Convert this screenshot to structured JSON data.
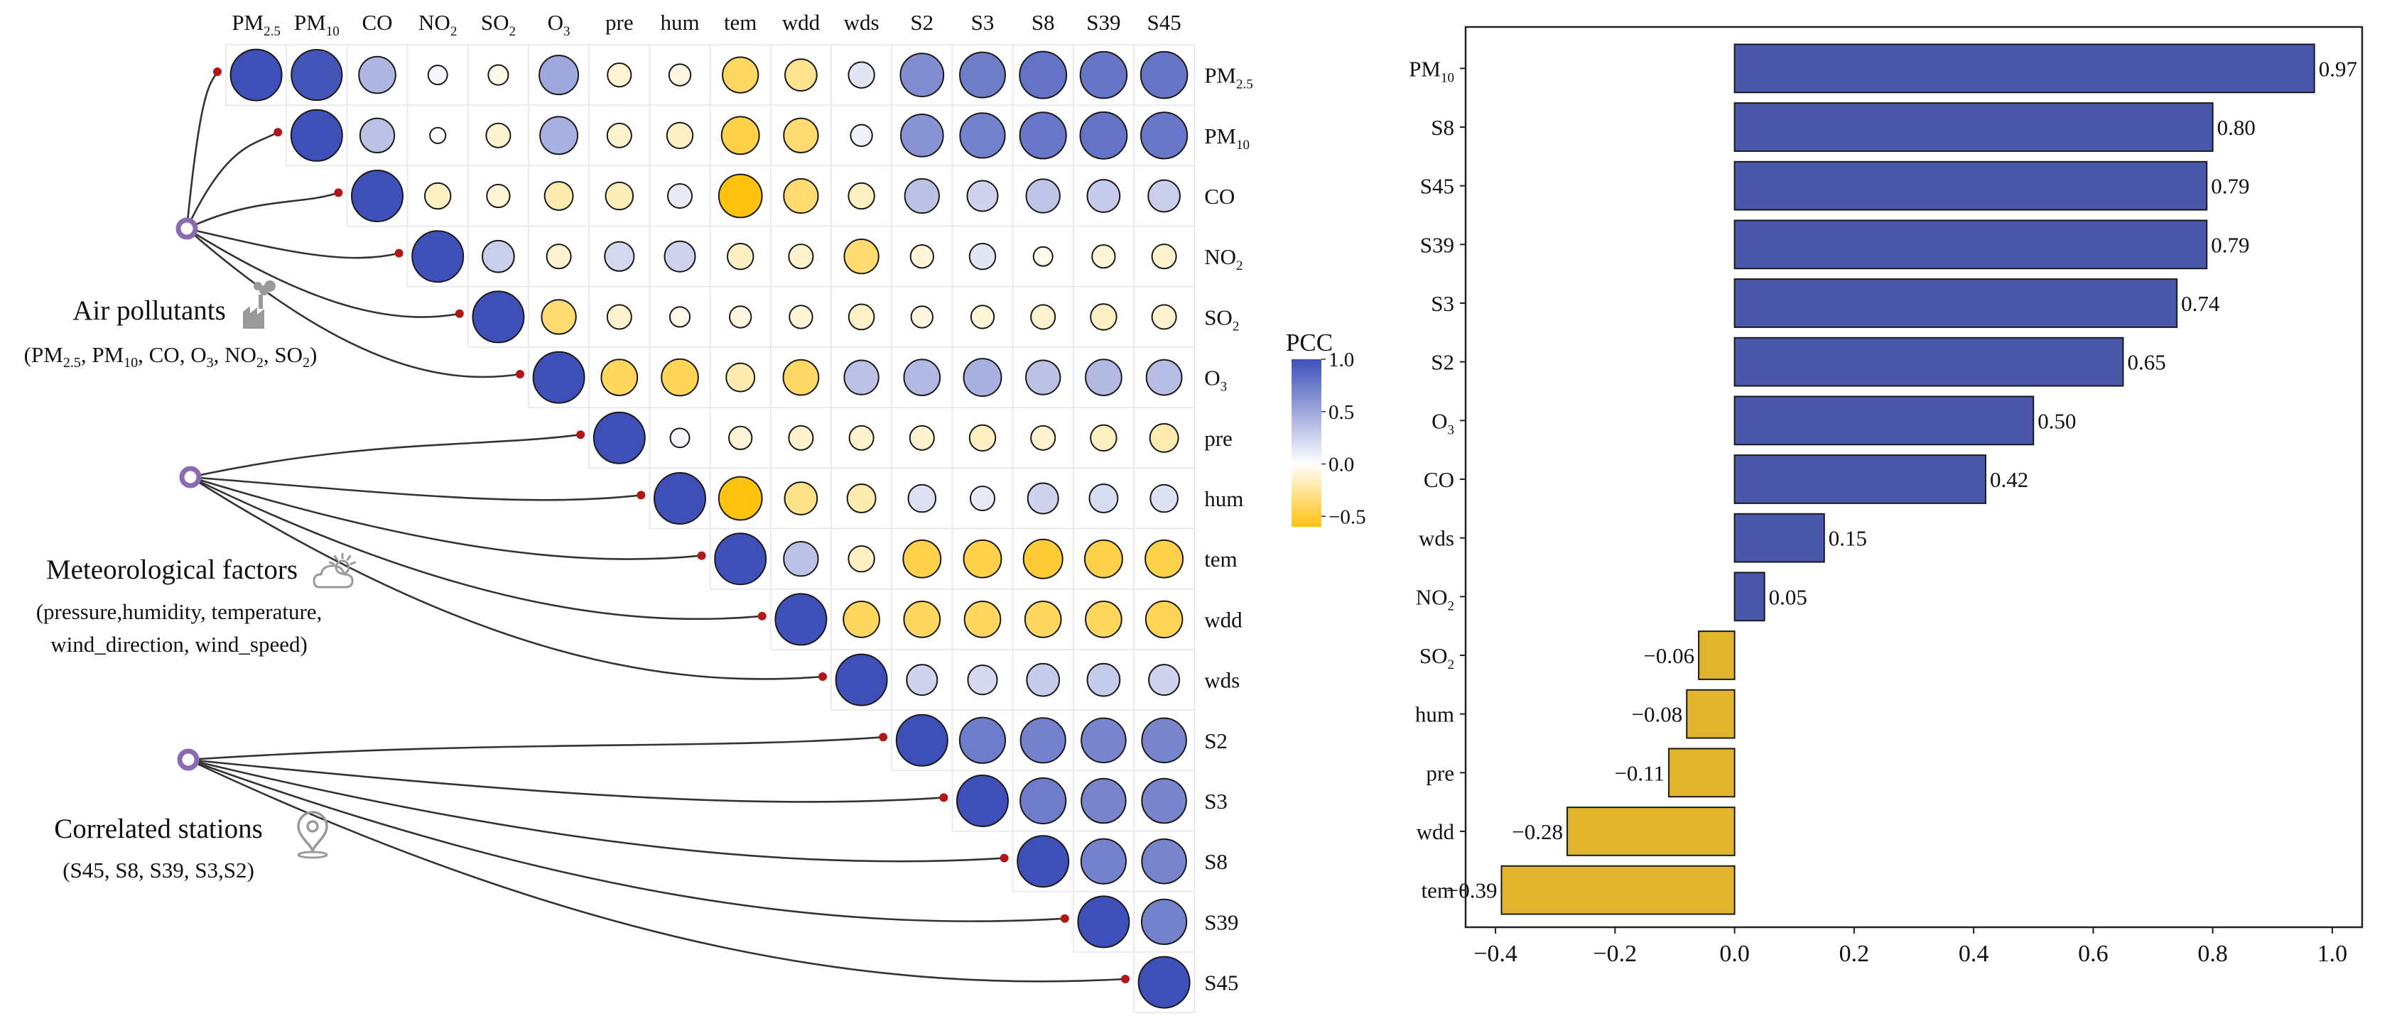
{
  "chart_data": [
    {
      "type": "heatmap",
      "subtype": "upper-triangular correlation circles",
      "columns": [
        "PM2.5",
        "PM10",
        "CO",
        "NO2",
        "SO2",
        "O3",
        "pre",
        "hum",
        "tem",
        "wdd",
        "wds",
        "S2",
        "S3",
        "S8",
        "S39",
        "S45"
      ],
      "rows": [
        "PM2.5",
        "PM10",
        "CO",
        "NO2",
        "SO2",
        "O3",
        "pre",
        "hum",
        "tem",
        "wdd",
        "wds",
        "S2",
        "S3",
        "S8",
        "S39",
        "S45"
      ],
      "column_labels": [
        {
          "base": "PM",
          "sub": "2.5"
        },
        {
          "base": "PM",
          "sub": "10"
        },
        {
          "base": "CO",
          "sub": ""
        },
        {
          "base": "NO",
          "sub": "2"
        },
        {
          "base": "SO",
          "sub": "2"
        },
        {
          "base": "O",
          "sub": "3"
        },
        {
          "base": "pre",
          "sub": ""
        },
        {
          "base": "hum",
          "sub": ""
        },
        {
          "base": "tem",
          "sub": ""
        },
        {
          "base": "wdd",
          "sub": ""
        },
        {
          "base": "wds",
          "sub": ""
        },
        {
          "base": "S2",
          "sub": ""
        },
        {
          "base": "S3",
          "sub": ""
        },
        {
          "base": "S8",
          "sub": ""
        },
        {
          "base": "S39",
          "sub": ""
        },
        {
          "base": "S45",
          "sub": ""
        }
      ],
      "matrix": [
        [
          1.0,
          0.97,
          0.42,
          0.05,
          -0.06,
          0.5,
          -0.11,
          -0.08,
          -0.39,
          -0.28,
          0.15,
          0.65,
          0.74,
          0.8,
          0.79,
          0.79
        ],
        [
          null,
          1.0,
          0.35,
          0.02,
          -0.12,
          0.45,
          -0.12,
          -0.15,
          -0.45,
          -0.35,
          0.08,
          0.62,
          0.72,
          0.78,
          0.8,
          0.78
        ],
        [
          null,
          null,
          1.0,
          -0.15,
          -0.1,
          -0.2,
          -0.18,
          0.12,
          -0.65,
          -0.35,
          -0.15,
          0.35,
          0.25,
          0.33,
          0.3,
          0.28
        ],
        [
          null,
          null,
          null,
          1.0,
          0.28,
          -0.12,
          0.22,
          0.25,
          -0.15,
          -0.12,
          -0.35,
          -0.1,
          0.15,
          -0.05,
          -0.1,
          -0.12
        ],
        [
          null,
          null,
          null,
          null,
          1.0,
          -0.35,
          -0.12,
          -0.06,
          -0.08,
          -0.1,
          -0.14,
          -0.08,
          -0.1,
          -0.12,
          -0.15,
          -0.12
        ],
        [
          null,
          null,
          null,
          null,
          null,
          1.0,
          -0.4,
          -0.42,
          -0.2,
          -0.38,
          0.35,
          0.4,
          0.45,
          0.35,
          0.4,
          0.38
        ],
        [
          null,
          null,
          null,
          null,
          null,
          null,
          1.0,
          0.05,
          -0.1,
          -0.12,
          -0.12,
          -0.12,
          -0.15,
          -0.12,
          -0.15,
          -0.2
        ],
        [
          null,
          null,
          null,
          null,
          null,
          null,
          null,
          1.0,
          -0.65,
          -0.3,
          -0.2,
          0.18,
          0.12,
          0.25,
          0.2,
          0.18
        ],
        [
          null,
          null,
          null,
          null,
          null,
          null,
          null,
          null,
          1.0,
          0.35,
          -0.15,
          -0.45,
          -0.45,
          -0.5,
          -0.45,
          -0.45
        ],
        [
          null,
          null,
          null,
          null,
          null,
          null,
          null,
          null,
          null,
          1.0,
          -0.4,
          -0.4,
          -0.4,
          -0.4,
          -0.4,
          -0.42
        ],
        [
          null,
          null,
          null,
          null,
          null,
          null,
          null,
          null,
          null,
          null,
          1.0,
          0.25,
          0.22,
          0.3,
          0.3,
          0.25
        ],
        [
          null,
          null,
          null,
          null,
          null,
          null,
          null,
          null,
          null,
          null,
          null,
          1.0,
          0.75,
          0.72,
          0.7,
          0.7
        ],
        [
          null,
          null,
          null,
          null,
          null,
          null,
          null,
          null,
          null,
          null,
          null,
          null,
          1.0,
          0.75,
          0.7,
          0.7
        ],
        [
          null,
          null,
          null,
          null,
          null,
          null,
          null,
          null,
          null,
          null,
          null,
          null,
          null,
          1.0,
          0.72,
          0.7
        ],
        [
          null,
          null,
          null,
          null,
          null,
          null,
          null,
          null,
          null,
          null,
          null,
          null,
          null,
          null,
          1.0,
          0.72
        ],
        [
          null,
          null,
          null,
          null,
          null,
          null,
          null,
          null,
          null,
          null,
          null,
          null,
          null,
          null,
          null,
          1.0
        ]
      ],
      "colorbar": {
        "title": "PCC",
        "range": [
          -0.6,
          1.0
        ],
        "ticks": [
          1.0,
          0.5,
          0.0,
          -0.5
        ],
        "tick_labels": [
          "1.0",
          "0.5",
          "0.0",
          "−0.5"
        ],
        "color_high": "#3e50b8",
        "color_mid": "#ffffff",
        "color_low": "#ffc20e"
      },
      "groups": [
        {
          "name": "air-pollutants",
          "label": "Air pollutants",
          "icon": "factory-icon",
          "members_lines": [
            [
              {
                "t": "(PM"
              },
              {
                "t": "2.5",
                "sub": true
              },
              {
                "t": ", PM"
              },
              {
                "t": "10",
                "sub": true
              },
              {
                "t": ", CO, O"
              },
              {
                "t": "3",
                "sub": true
              },
              {
                "t": ", NO"
              },
              {
                "t": "2",
                "sub": true
              },
              {
                "t": ", SO"
              },
              {
                "t": "2",
                "sub": true
              },
              {
                "t": ")"
              }
            ]
          ],
          "connects_to_rows": [
            0,
            1,
            2,
            3,
            4,
            5
          ]
        },
        {
          "name": "meteorological-factors",
          "label": "Meteorological factors",
          "icon": "weather-cloud-sun-icon",
          "members_lines": [
            [
              {
                "t": "(pressure,humidity, temperature,"
              }
            ],
            [
              {
                "t": "wind_direction, wind_speed)"
              }
            ]
          ],
          "connects_to_rows": [
            6,
            7,
            8,
            9,
            10
          ]
        },
        {
          "name": "correlated-stations",
          "label": "Correlated stations",
          "icon": "map-pin-icon",
          "members_lines": [
            [
              {
                "t": "(S45, S8, S39, S3,S2)"
              }
            ]
          ],
          "connects_to_rows": [
            11,
            12,
            13,
            14,
            15
          ]
        }
      ]
    },
    {
      "type": "bar",
      "orientation": "horizontal",
      "categories": [
        "PM10",
        "S8",
        "S45",
        "S39",
        "S3",
        "S2",
        "O3",
        "CO",
        "wds",
        "NO2",
        "SO2",
        "hum",
        "pre",
        "wdd",
        "tem"
      ],
      "category_labels": [
        {
          "base": "PM",
          "sub": "10"
        },
        {
          "base": "S8",
          "sub": ""
        },
        {
          "base": "S45",
          "sub": ""
        },
        {
          "base": "S39",
          "sub": ""
        },
        {
          "base": "S3",
          "sub": ""
        },
        {
          "base": "S2",
          "sub": ""
        },
        {
          "base": "O",
          "sub": "3"
        },
        {
          "base": "CO",
          "sub": ""
        },
        {
          "base": "wds",
          "sub": ""
        },
        {
          "base": "NO",
          "sub": "2"
        },
        {
          "base": "SO",
          "sub": "2"
        },
        {
          "base": "hum",
          "sub": ""
        },
        {
          "base": "pre",
          "sub": ""
        },
        {
          "base": "wdd",
          "sub": ""
        },
        {
          "base": "tem",
          "sub": ""
        }
      ],
      "values": [
        0.97,
        0.8,
        0.79,
        0.79,
        0.74,
        0.65,
        0.5,
        0.42,
        0.15,
        0.05,
        -0.06,
        -0.08,
        -0.11,
        -0.28,
        -0.39
      ],
      "value_labels": [
        "0.97",
        "0.80",
        "0.79",
        "0.79",
        "0.74",
        "0.65",
        "0.50",
        "0.42",
        "0.15",
        "0.05",
        "−0.06",
        "−0.08",
        "−0.11",
        "−0.28",
        "−0.39"
      ],
      "xlim": [
        -0.45,
        1.05
      ],
      "xticks": [
        -0.4,
        -0.2,
        0.0,
        0.2,
        0.4,
        0.6,
        0.8,
        1.0
      ],
      "xtick_labels": [
        "−0.4",
        "−0.2",
        "0.0",
        "0.2",
        "0.4",
        "0.6",
        "0.8",
        "1.0"
      ],
      "title": "",
      "xlabel": "",
      "ylabel": "",
      "positive_color": "#4b57a8",
      "negative_color": "#e0b52d"
    }
  ],
  "colors": {
    "connector_dot": "#b01818",
    "group_node": "#8a6bb0",
    "grid": "#e6e6e6",
    "circle_stroke": "#1a1a1a",
    "icon_gray": "#9a9a9a"
  }
}
